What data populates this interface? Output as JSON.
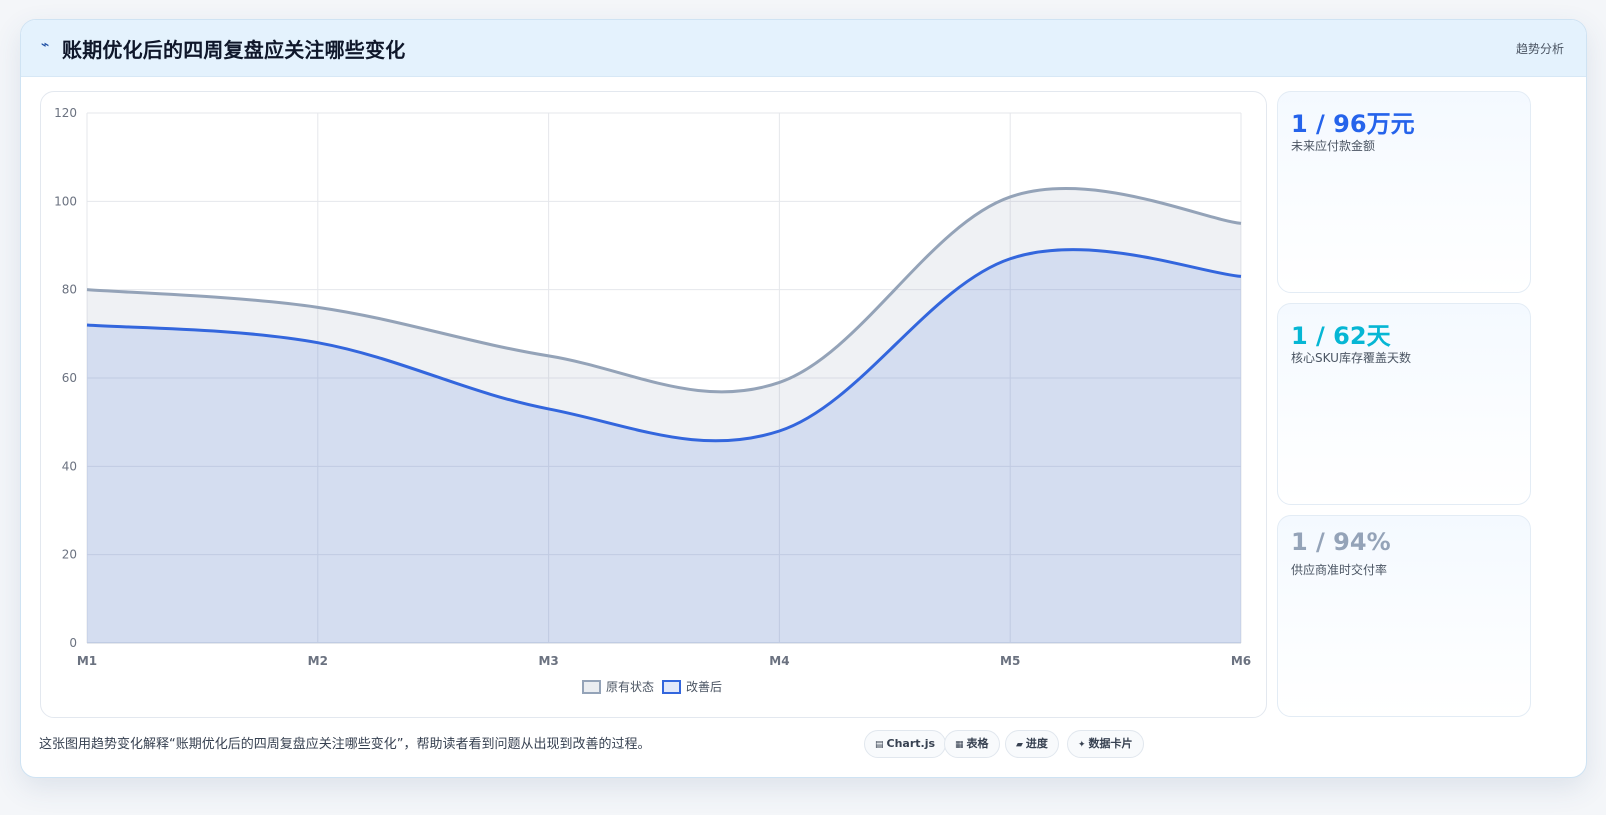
{
  "header": {
    "icon": "bolt-icon",
    "title": "账期优化后的四周复盘应关注哪些变化",
    "tag": "趋势分析"
  },
  "stats": [
    {
      "value": "1 / 96万元",
      "label": "未来应付款金额",
      "color": "#2563eb"
    },
    {
      "value": "1 / 62天",
      "label": "核心SKU库存覆盖天数",
      "color": "#06b6d4"
    },
    {
      "value": "1 / 94%",
      "label": "供应商准时交付率",
      "color": "#94a3b8"
    }
  ],
  "footer": {
    "note": "这张图用趋势变化解释“账期优化后的四周复盘应关注哪些变化”，帮助读者看到问题从出现到改善的过程。",
    "pills": [
      {
        "icon": "chart-icon",
        "glyph": "▤",
        "label": "Chart.js"
      },
      {
        "icon": "table-icon",
        "glyph": "▦",
        "label": "表格"
      },
      {
        "icon": "progress-icon",
        "glyph": "▰",
        "label": "进度"
      },
      {
        "icon": "card-icon",
        "glyph": "✦",
        "label": "数据卡片"
      }
    ]
  },
  "chart_data": {
    "type": "area",
    "categories": [
      "M1",
      "M2",
      "M3",
      "M4",
      "M5",
      "M6"
    ],
    "series": [
      {
        "name": "原有状态",
        "values": [
          80,
          76,
          65,
          59,
          101,
          95
        ],
        "color": "#94a3b8"
      },
      {
        "name": "改善后",
        "values": [
          72,
          68,
          53,
          48,
          87,
          83
        ],
        "color": "#3366dd"
      }
    ],
    "ylim": [
      0,
      120
    ],
    "yticks": [
      0,
      20,
      40,
      60,
      80,
      100,
      120
    ],
    "grid": true,
    "legend": "bottom-center",
    "title": "",
    "xlabel": "",
    "ylabel": ""
  }
}
